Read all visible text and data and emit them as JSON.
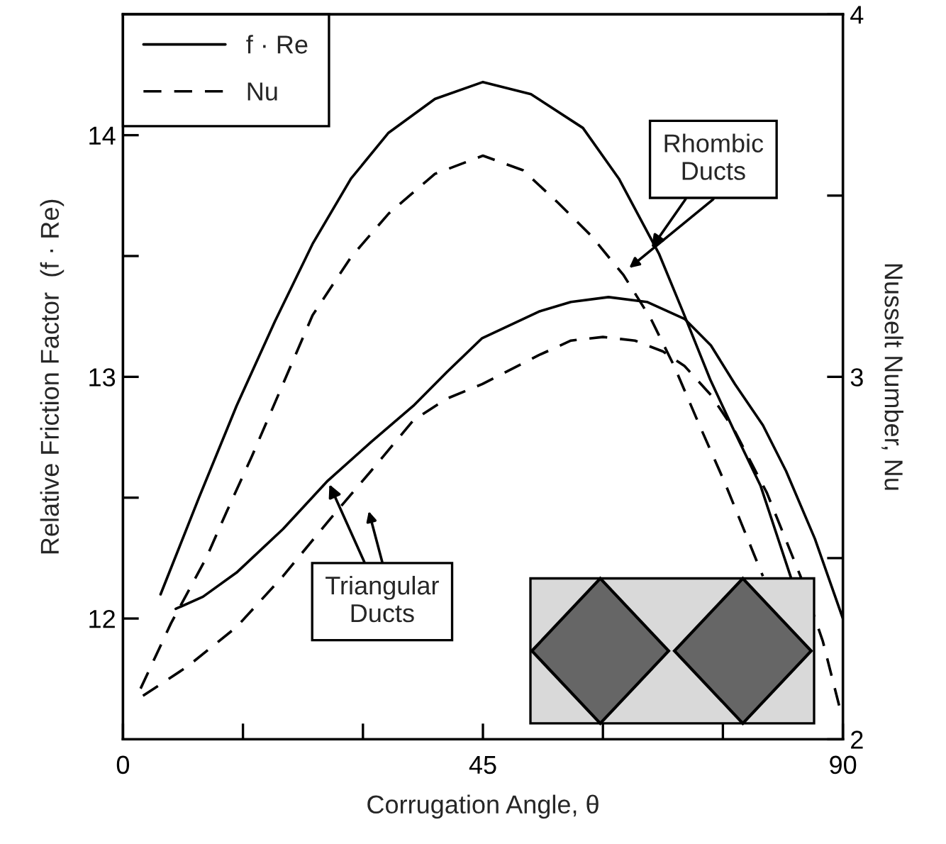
{
  "chart_data": {
    "type": "line",
    "xlabel": "Corrugation Angle, θ",
    "ylabel": "Relative Friction Factor  (f · Re)",
    "y2label": "Nusselt Number, Nu",
    "xlim": [
      0,
      90
    ],
    "xticks": [
      0,
      {
        "value": 15,
        "label": null
      },
      {
        "value": 30,
        "label": null
      },
      45,
      {
        "value": 60,
        "label": null
      },
      {
        "value": 75,
        "label": null
      },
      90
    ],
    "ylim": [
      11.5,
      14.5
    ],
    "yticks": [
      12,
      {
        "value": 12.5,
        "label": null
      },
      13,
      {
        "value": 13.5,
        "label": null
      },
      14
    ],
    "y2lim": [
      2,
      4
    ],
    "y2ticks": [
      2,
      {
        "value": 2.5,
        "label": null
      },
      3,
      {
        "value": 3.5,
        "label": null
      },
      4
    ],
    "legend": "top left",
    "grid": false,
    "annotations": [
      {
        "text": "Rhombic\nDucts",
        "x": 65.8,
        "y": 13.52
      },
      {
        "text": "Triangular\nDucts",
        "x": 25.6,
        "y": 12.57
      }
    ],
    "series": [
      {
        "name": "f · Re",
        "color": "#000000",
        "line_style": "solid",
        "x": [
          4.7,
          9.5,
          14.2,
          19,
          23.7,
          28.5,
          33.2,
          39,
          45,
          51,
          57.5,
          62,
          67,
          70,
          73.4,
          76.5,
          79.7,
          83.5
        ],
        "values": [
          12.1,
          12.5,
          12.88,
          13.23,
          13.55,
          13.82,
          14.01,
          14.15,
          14.22,
          14.17,
          14.03,
          13.82,
          13.51,
          13.27,
          12.99,
          12.77,
          12.55,
          12.17
        ]
      },
      {
        "color": "#000000",
        "line_style": "solid",
        "x": [
          6.6,
          10,
          14.2,
          20,
          25.6,
          31,
          36.3,
          40.5,
          44.9,
          52,
          56,
          60.7,
          65.5,
          70.2,
          73.5,
          76.5,
          80,
          82.9,
          86.5,
          90
        ],
        "values": [
          12.04,
          12.09,
          12.19,
          12.37,
          12.57,
          12.73,
          12.88,
          13.02,
          13.16,
          13.27,
          13.31,
          13.33,
          13.31,
          13.24,
          13.13,
          12.97,
          12.8,
          12.61,
          12.33,
          12.0
        ]
      },
      {
        "name": "Nu",
        "color": "#000000",
        "line_style": "dashed",
        "axis": "y2",
        "x": [
          2.2,
          6,
          10.4,
          13,
          16.1,
          20,
          23.7,
          28.5,
          33.2,
          39,
          45,
          50,
          54.4,
          58.5,
          62.6,
          66,
          68.9,
          72,
          75.2,
          80
        ],
        "values": [
          2.14,
          2.32,
          2.5,
          2.63,
          2.78,
          2.98,
          3.17,
          3.33,
          3.45,
          3.56,
          3.61,
          3.57,
          3.48,
          3.39,
          3.28,
          3.16,
          3.03,
          2.87,
          2.71,
          2.45
        ]
      },
      {
        "color": "#000000",
        "line_style": "dashed",
        "axis": "y2",
        "x": [
          2.5,
          8,
          14.2,
          20,
          25.6,
          31,
          36.3,
          40.5,
          44.9,
          52,
          56,
          60,
          64,
          67.5,
          70.2,
          73.5,
          76.5,
          80.5,
          84.7,
          87.5,
          89.8
        ],
        "values": [
          2.12,
          2.2,
          2.31,
          2.45,
          2.6,
          2.74,
          2.88,
          2.94,
          2.98,
          3.06,
          3.1,
          3.11,
          3.1,
          3.07,
          3.03,
          2.95,
          2.85,
          2.68,
          2.45,
          2.27,
          2.07
        ]
      }
    ]
  }
}
